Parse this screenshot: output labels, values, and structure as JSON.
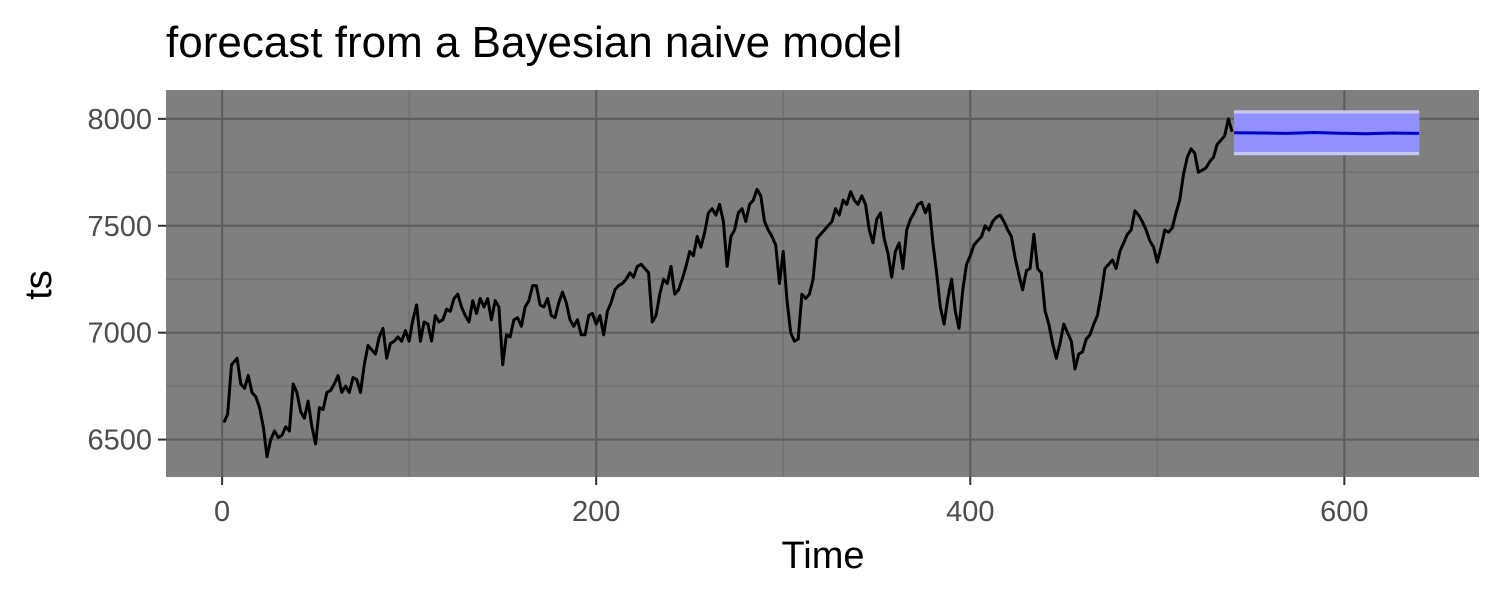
{
  "chart_data": {
    "type": "line",
    "title": "forecast from a Bayesian naive model",
    "xlabel": "Time",
    "ylabel": "ts",
    "xlim": [
      -30,
      672
    ],
    "ylim": [
      6325,
      8135
    ],
    "x_ticks": [
      0,
      200,
      400,
      600
    ],
    "y_ticks": [
      6500,
      7000,
      7500,
      8000
    ],
    "grid": true,
    "panel_background": "#7f7f7f",
    "series": [
      {
        "role": "observed",
        "color": "#000000",
        "points": [
          [
            1,
            6580
          ],
          [
            3,
            6620
          ],
          [
            5,
            6850
          ],
          [
            8,
            6880
          ],
          [
            10,
            6760
          ],
          [
            12,
            6740
          ],
          [
            14,
            6800
          ],
          [
            16,
            6720
          ],
          [
            18,
            6700
          ],
          [
            20,
            6650
          ],
          [
            22,
            6560
          ],
          [
            24,
            6420
          ],
          [
            26,
            6500
          ],
          [
            28,
            6540
          ],
          [
            30,
            6510
          ],
          [
            32,
            6520
          ],
          [
            34,
            6560
          ],
          [
            36,
            6540
          ],
          [
            38,
            6760
          ],
          [
            40,
            6720
          ],
          [
            42,
            6630
          ],
          [
            44,
            6600
          ],
          [
            46,
            6680
          ],
          [
            48,
            6560
          ],
          [
            50,
            6480
          ],
          [
            52,
            6650
          ],
          [
            54,
            6640
          ],
          [
            56,
            6720
          ],
          [
            58,
            6730
          ],
          [
            60,
            6760
          ],
          [
            62,
            6800
          ],
          [
            64,
            6720
          ],
          [
            66,
            6750
          ],
          [
            68,
            6720
          ],
          [
            70,
            6790
          ],
          [
            72,
            6780
          ],
          [
            74,
            6720
          ],
          [
            76,
            6850
          ],
          [
            78,
            6940
          ],
          [
            80,
            6920
          ],
          [
            82,
            6900
          ],
          [
            84,
            6980
          ],
          [
            86,
            7020
          ],
          [
            88,
            6880
          ],
          [
            90,
            6950
          ],
          [
            92,
            6960
          ],
          [
            94,
            6980
          ],
          [
            96,
            6960
          ],
          [
            98,
            7010
          ],
          [
            100,
            6960
          ],
          [
            102,
            7060
          ],
          [
            104,
            7130
          ],
          [
            106,
            6960
          ],
          [
            108,
            7050
          ],
          [
            110,
            7040
          ],
          [
            112,
            6960
          ],
          [
            114,
            7080
          ],
          [
            116,
            7050
          ],
          [
            118,
            7060
          ],
          [
            120,
            7110
          ],
          [
            122,
            7100
          ],
          [
            124,
            7160
          ],
          [
            126,
            7180
          ],
          [
            128,
            7120
          ],
          [
            130,
            7080
          ],
          [
            132,
            7050
          ],
          [
            134,
            7150
          ],
          [
            136,
            7090
          ],
          [
            138,
            7160
          ],
          [
            140,
            7120
          ],
          [
            142,
            7160
          ],
          [
            144,
            7060
          ],
          [
            146,
            7150
          ],
          [
            148,
            7120
          ],
          [
            150,
            6850
          ],
          [
            152,
            6990
          ],
          [
            154,
            6980
          ],
          [
            156,
            7060
          ],
          [
            158,
            7070
          ],
          [
            160,
            7030
          ],
          [
            162,
            7120
          ],
          [
            164,
            7150
          ],
          [
            166,
            7220
          ],
          [
            168,
            7220
          ],
          [
            170,
            7130
          ],
          [
            172,
            7120
          ],
          [
            174,
            7160
          ],
          [
            176,
            7080
          ],
          [
            178,
            7070
          ],
          [
            180,
            7140
          ],
          [
            182,
            7190
          ],
          [
            184,
            7140
          ],
          [
            186,
            7060
          ],
          [
            188,
            7030
          ],
          [
            190,
            7060
          ],
          [
            192,
            6990
          ],
          [
            194,
            6990
          ],
          [
            196,
            7080
          ],
          [
            198,
            7090
          ],
          [
            200,
            7040
          ],
          [
            202,
            7080
          ],
          [
            204,
            6990
          ],
          [
            206,
            7100
          ],
          [
            208,
            7140
          ],
          [
            210,
            7200
          ],
          [
            212,
            7220
          ],
          [
            214,
            7230
          ],
          [
            216,
            7250
          ],
          [
            218,
            7280
          ],
          [
            220,
            7260
          ],
          [
            222,
            7310
          ],
          [
            224,
            7320
          ],
          [
            226,
            7300
          ],
          [
            228,
            7280
          ],
          [
            230,
            7050
          ],
          [
            232,
            7080
          ],
          [
            234,
            7180
          ],
          [
            236,
            7250
          ],
          [
            238,
            7230
          ],
          [
            240,
            7310
          ],
          [
            242,
            7180
          ],
          [
            244,
            7200
          ],
          [
            246,
            7250
          ],
          [
            248,
            7310
          ],
          [
            250,
            7380
          ],
          [
            252,
            7360
          ],
          [
            254,
            7450
          ],
          [
            256,
            7400
          ],
          [
            258,
            7470
          ],
          [
            260,
            7560
          ],
          [
            262,
            7580
          ],
          [
            264,
            7550
          ],
          [
            266,
            7600
          ],
          [
            268,
            7520
          ],
          [
            270,
            7310
          ],
          [
            272,
            7450
          ],
          [
            274,
            7480
          ],
          [
            276,
            7560
          ],
          [
            278,
            7580
          ],
          [
            280,
            7520
          ],
          [
            282,
            7600
          ],
          [
            284,
            7620
          ],
          [
            286,
            7670
          ],
          [
            288,
            7640
          ],
          [
            290,
            7520
          ],
          [
            292,
            7480
          ],
          [
            294,
            7450
          ],
          [
            296,
            7410
          ],
          [
            298,
            7230
          ],
          [
            300,
            7380
          ],
          [
            302,
            7150
          ],
          [
            304,
            7000
          ],
          [
            306,
            6960
          ],
          [
            308,
            6970
          ],
          [
            310,
            7180
          ],
          [
            312,
            7160
          ],
          [
            314,
            7180
          ],
          [
            316,
            7250
          ],
          [
            318,
            7440
          ],
          [
            320,
            7460
          ],
          [
            322,
            7480
          ],
          [
            324,
            7500
          ],
          [
            326,
            7520
          ],
          [
            328,
            7580
          ],
          [
            330,
            7550
          ],
          [
            332,
            7620
          ],
          [
            334,
            7600
          ],
          [
            336,
            7660
          ],
          [
            338,
            7620
          ],
          [
            340,
            7600
          ],
          [
            342,
            7640
          ],
          [
            344,
            7600
          ],
          [
            346,
            7480
          ],
          [
            348,
            7420
          ],
          [
            350,
            7530
          ],
          [
            352,
            7560
          ],
          [
            354,
            7440
          ],
          [
            356,
            7370
          ],
          [
            358,
            7260
          ],
          [
            360,
            7380
          ],
          [
            362,
            7420
          ],
          [
            364,
            7300
          ],
          [
            366,
            7480
          ],
          [
            368,
            7530
          ],
          [
            370,
            7560
          ],
          [
            372,
            7600
          ],
          [
            374,
            7610
          ],
          [
            376,
            7560
          ],
          [
            378,
            7600
          ],
          [
            380,
            7420
          ],
          [
            382,
            7280
          ],
          [
            384,
            7120
          ],
          [
            386,
            7040
          ],
          [
            388,
            7160
          ],
          [
            390,
            7250
          ],
          [
            392,
            7100
          ],
          [
            394,
            7020
          ],
          [
            396,
            7200
          ],
          [
            398,
            7320
          ],
          [
            400,
            7360
          ],
          [
            402,
            7410
          ],
          [
            404,
            7430
          ],
          [
            406,
            7450
          ],
          [
            408,
            7500
          ],
          [
            410,
            7480
          ],
          [
            412,
            7520
          ],
          [
            414,
            7540
          ],
          [
            416,
            7550
          ],
          [
            418,
            7520
          ],
          [
            420,
            7480
          ],
          [
            422,
            7450
          ],
          [
            424,
            7350
          ],
          [
            426,
            7270
          ],
          [
            428,
            7200
          ],
          [
            430,
            7290
          ],
          [
            432,
            7300
          ],
          [
            434,
            7460
          ],
          [
            436,
            7300
          ],
          [
            438,
            7280
          ],
          [
            440,
            7100
          ],
          [
            442,
            7040
          ],
          [
            444,
            6950
          ],
          [
            446,
            6880
          ],
          [
            448,
            6950
          ],
          [
            450,
            7040
          ],
          [
            452,
            7000
          ],
          [
            454,
            6960
          ],
          [
            456,
            6830
          ],
          [
            458,
            6900
          ],
          [
            460,
            6910
          ],
          [
            462,
            6970
          ],
          [
            464,
            6990
          ],
          [
            466,
            7040
          ],
          [
            468,
            7080
          ],
          [
            470,
            7180
          ],
          [
            472,
            7300
          ],
          [
            474,
            7320
          ],
          [
            476,
            7340
          ],
          [
            478,
            7300
          ],
          [
            480,
            7380
          ],
          [
            482,
            7420
          ],
          [
            484,
            7460
          ],
          [
            486,
            7480
          ],
          [
            488,
            7570
          ],
          [
            490,
            7550
          ],
          [
            492,
            7520
          ],
          [
            494,
            7480
          ],
          [
            496,
            7430
          ],
          [
            498,
            7400
          ],
          [
            500,
            7330
          ],
          [
            502,
            7400
          ],
          [
            504,
            7480
          ],
          [
            506,
            7470
          ],
          [
            508,
            7490
          ],
          [
            510,
            7560
          ],
          [
            512,
            7620
          ],
          [
            514,
            7740
          ],
          [
            516,
            7820
          ],
          [
            518,
            7860
          ],
          [
            520,
            7840
          ],
          [
            522,
            7750
          ],
          [
            524,
            7760
          ],
          [
            526,
            7770
          ],
          [
            528,
            7800
          ],
          [
            530,
            7820
          ],
          [
            532,
            7880
          ],
          [
            534,
            7900
          ],
          [
            536,
            7920
          ],
          [
            538,
            8000
          ],
          [
            540,
            7940
          ]
        ]
      },
      {
        "role": "forecast-median",
        "color": "#0000cc",
        "x_start": 541,
        "x_end": 640,
        "values": [
          7935,
          7934,
          7932,
          7936,
          7933,
          7930,
          7934,
          7932
        ]
      }
    ],
    "intervals": [
      {
        "role": "outer-band",
        "color": "#c8c8f0",
        "x_start": 541,
        "x_end": 640,
        "lower": 7830,
        "upper": 8040
      },
      {
        "role": "inner-band",
        "color": "#9090ff",
        "x_start": 541,
        "x_end": 640,
        "lower": 7845,
        "upper": 8025
      }
    ]
  }
}
